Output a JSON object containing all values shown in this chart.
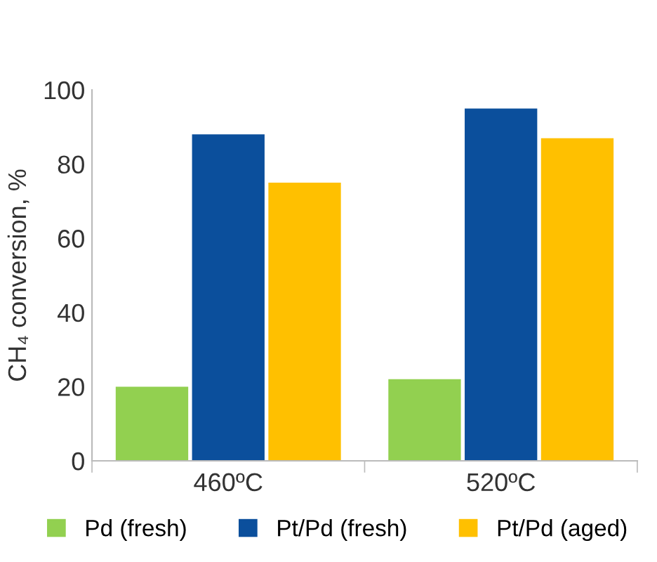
{
  "chart_data": {
    "type": "bar",
    "ylabel": "CH₄ conversion, %",
    "categories": [
      "460ºC",
      "520ºC"
    ],
    "series": [
      {
        "name": "Pd (fresh)",
        "color": "#92d050",
        "values": [
          20,
          22
        ]
      },
      {
        "name": "Pt/Pd (fresh)",
        "color": "#0b4f9c",
        "values": [
          88,
          95
        ]
      },
      {
        "name": "Pt/Pd (aged)",
        "color": "#ffc000",
        "values": [
          75,
          87
        ]
      }
    ],
    "ylim": [
      0,
      100
    ],
    "yticks": [
      0,
      20,
      40,
      60,
      80,
      100
    ],
    "grid": false,
    "legend": "bottom"
  }
}
